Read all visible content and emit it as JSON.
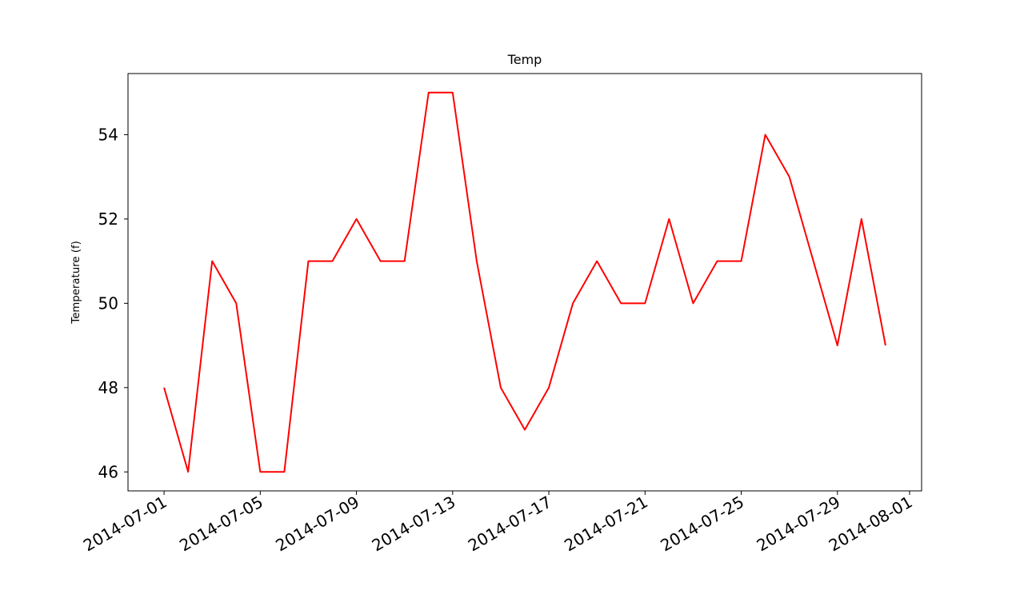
{
  "chart_data": {
    "type": "line",
    "title": "Temp",
    "xlabel": "",
    "ylabel": "Temperature (f)",
    "x": [
      "2014-07-01",
      "2014-07-02",
      "2014-07-03",
      "2014-07-04",
      "2014-07-05",
      "2014-07-06",
      "2014-07-07",
      "2014-07-08",
      "2014-07-09",
      "2014-07-10",
      "2014-07-11",
      "2014-07-12",
      "2014-07-13",
      "2014-07-14",
      "2014-07-15",
      "2014-07-16",
      "2014-07-17",
      "2014-07-18",
      "2014-07-19",
      "2014-07-20",
      "2014-07-21",
      "2014-07-22",
      "2014-07-23",
      "2014-07-24",
      "2014-07-25",
      "2014-07-26",
      "2014-07-27",
      "2014-07-28",
      "2014-07-29",
      "2014-07-30",
      "2014-07-31"
    ],
    "series": [
      {
        "color": "#ff0000",
        "values": [
          48,
          46,
          51,
          50,
          46,
          46,
          51,
          51,
          52,
          51,
          51,
          55,
          55,
          51,
          48,
          47,
          48,
          50,
          51,
          50,
          50,
          52,
          50,
          51,
          51,
          54,
          53,
          51,
          49,
          52,
          49
        ]
      }
    ],
    "xlim": [
      "2014-06-29 12:00",
      "2014-08-01 12:00"
    ],
    "ylim": [
      45.55,
      55.45
    ],
    "x_ticks": [
      "2014-07-01",
      "2014-07-05",
      "2014-07-09",
      "2014-07-13",
      "2014-07-17",
      "2014-07-21",
      "2014-07-25",
      "2014-07-29",
      "2014-08-01"
    ],
    "y_ticks": [
      46,
      48,
      50,
      52,
      54
    ],
    "grid": false,
    "legend": "none"
  }
}
